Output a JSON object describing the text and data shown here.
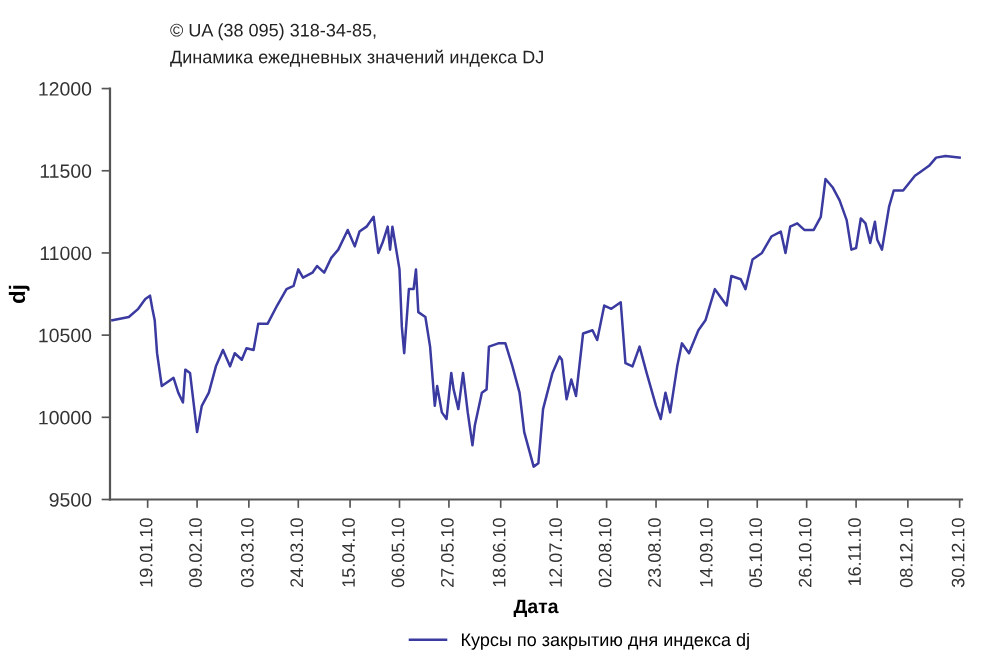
{
  "chart_data": {
    "type": "line",
    "title": "© UA (38 095) 318-34-85,",
    "subtitle": "Динамика ежедневных значений индекса DJ",
    "xlabel": "Дата",
    "ylabel": "dj",
    "x": [
      "2010-01-04",
      "2010-01-11",
      "2010-01-15",
      "2010-01-18",
      "2010-01-20",
      "2010-01-21",
      "2010-01-22",
      "2010-01-23",
      "2010-01-25",
      "2010-01-27",
      "2010-01-30",
      "2010-02-01",
      "2010-02-03",
      "2010-02-04",
      "2010-02-06",
      "2010-02-08",
      "2010-02-09",
      "2010-02-11",
      "2010-02-14",
      "2010-02-17",
      "2010-02-20",
      "2010-02-23",
      "2010-02-25",
      "2010-02-28",
      "2010-03-02",
      "2010-03-05",
      "2010-03-07",
      "2010-03-11",
      "2010-03-15",
      "2010-03-19",
      "2010-03-22",
      "2010-03-24",
      "2010-03-26",
      "2010-03-30",
      "2010-04-01",
      "2010-04-04",
      "2010-04-07",
      "2010-04-10",
      "2010-04-14",
      "2010-04-17",
      "2010-04-19",
      "2010-04-22",
      "2010-04-25",
      "2010-04-27",
      "2010-04-29",
      "2010-05-01",
      "2010-05-02",
      "2010-05-03",
      "2010-05-06",
      "2010-05-07",
      "2010-05-08",
      "2010-05-10",
      "2010-05-12",
      "2010-05-13",
      "2010-05-14",
      "2010-05-17",
      "2010-05-19",
      "2010-05-21",
      "2010-05-22",
      "2010-05-24",
      "2010-05-26",
      "2010-05-28",
      "2010-05-29",
      "2010-05-31",
      "2010-06-02",
      "2010-06-04",
      "2010-06-06",
      "2010-06-07",
      "2010-06-10",
      "2010-06-12",
      "2010-06-13",
      "2010-06-17",
      "2010-06-20",
      "2010-06-23",
      "2010-06-26",
      "2010-06-28",
      "2010-07-02",
      "2010-07-04",
      "2010-07-06",
      "2010-07-10",
      "2010-07-13",
      "2010-07-14",
      "2010-07-16",
      "2010-07-18",
      "2010-07-20",
      "2010-07-23",
      "2010-07-27",
      "2010-07-29",
      "2010-08-01",
      "2010-08-04",
      "2010-08-08",
      "2010-08-10",
      "2010-08-13",
      "2010-08-16",
      "2010-08-19",
      "2010-08-23",
      "2010-08-25",
      "2010-08-27",
      "2010-08-29",
      "2010-09-01",
      "2010-09-03",
      "2010-09-06",
      "2010-09-10",
      "2010-09-13",
      "2010-09-17",
      "2010-09-19",
      "2010-09-22",
      "2010-09-24",
      "2010-09-28",
      "2010-09-30",
      "2010-10-03",
      "2010-10-07",
      "2010-10-11",
      "2010-10-15",
      "2010-10-17",
      "2010-10-19",
      "2010-10-22",
      "2010-10-25",
      "2010-10-29",
      "2010-11-01",
      "2010-11-03",
      "2010-11-06",
      "2010-11-09",
      "2010-11-12",
      "2010-11-14",
      "2010-11-16",
      "2010-11-18",
      "2010-11-20",
      "2010-11-22",
      "2010-11-24",
      "2010-11-25",
      "2010-11-27",
      "2010-11-30",
      "2010-12-02",
      "2010-12-06",
      "2010-12-11",
      "2010-12-13",
      "2010-12-17",
      "2010-12-20",
      "2010-12-24",
      "2010-12-30"
    ],
    "series": [
      {
        "name": "Курсы по закрытию дня индекса dj",
        "color": "#3a3aa0",
        "values": [
          10590,
          10610,
          10660,
          10720,
          10740,
          10660,
          10590,
          10390,
          10190,
          10210,
          10240,
          10150,
          10090,
          10290,
          10270,
          10030,
          9910,
          10070,
          10150,
          10310,
          10410,
          10310,
          10390,
          10350,
          10420,
          10410,
          10570,
          10570,
          10680,
          10780,
          10800,
          10900,
          10850,
          10880,
          10920,
          10880,
          10970,
          11020,
          11140,
          11040,
          11130,
          11160,
          11220,
          11000,
          11070,
          11160,
          11020,
          11160,
          10900,
          10550,
          10390,
          10780,
          10780,
          10900,
          10640,
          10610,
          10430,
          10070,
          10190,
          10030,
          9990,
          10270,
          10170,
          10050,
          10270,
          10030,
          9830,
          9950,
          10150,
          10170,
          10430,
          10450,
          10450,
          10310,
          10150,
          9910,
          9700,
          9720,
          10050,
          10270,
          10370,
          10350,
          10110,
          10230,
          10130,
          10510,
          10530,
          10470,
          10680,
          10660,
          10700,
          10330,
          10310,
          10430,
          10270,
          10070,
          9990,
          10150,
          10030,
          10310,
          10450,
          10390,
          10530,
          10590,
          10780,
          10740,
          10680,
          10860,
          10840,
          10780,
          10960,
          11000,
          11100,
          11130,
          11000,
          11160,
          11180,
          11140,
          11140,
          11220,
          11450,
          11400,
          11320,
          11200,
          11020,
          11030,
          11210,
          11180,
          11060,
          11190,
          11080,
          11020,
          11280,
          11380,
          11380,
          11470,
          11490,
          11530,
          11580,
          11590,
          11580
        ]
      }
    ],
    "xlim": [
      "2010-01-03",
      "2010-12-31"
    ],
    "xticks": [
      {
        "value": "2010-01-19",
        "label": "19.01.10"
      },
      {
        "value": "2010-02-09",
        "label": "09.02.10"
      },
      {
        "value": "2010-03-03",
        "label": "03.03.10"
      },
      {
        "value": "2010-03-24",
        "label": "24.03.10"
      },
      {
        "value": "2010-04-15",
        "label": "15.04.10"
      },
      {
        "value": "2010-05-06",
        "label": "06.05.10"
      },
      {
        "value": "2010-05-27",
        "label": "27.05.10"
      },
      {
        "value": "2010-06-18",
        "label": "18.06.10"
      },
      {
        "value": "2010-07-12",
        "label": "12.07.10"
      },
      {
        "value": "2010-08-02",
        "label": "02.08.10"
      },
      {
        "value": "2010-08-23",
        "label": "23.08.10"
      },
      {
        "value": "2010-09-14",
        "label": "14.09.10"
      },
      {
        "value": "2010-10-05",
        "label": "05.10.10"
      },
      {
        "value": "2010-10-26",
        "label": "26.10.10"
      },
      {
        "value": "2010-11-16",
        "label": "16.11.10"
      },
      {
        "value": "2010-12-08",
        "label": "08.12.10"
      },
      {
        "value": "2010-12-30",
        "label": "30.12.10"
      }
    ],
    "ylim": [
      9500,
      12000
    ],
    "yticks": [
      9500,
      10000,
      10500,
      11000,
      11500,
      12000
    ],
    "grid": false,
    "legend": "bottom",
    "marker": "none",
    "line_style": "solid"
  }
}
